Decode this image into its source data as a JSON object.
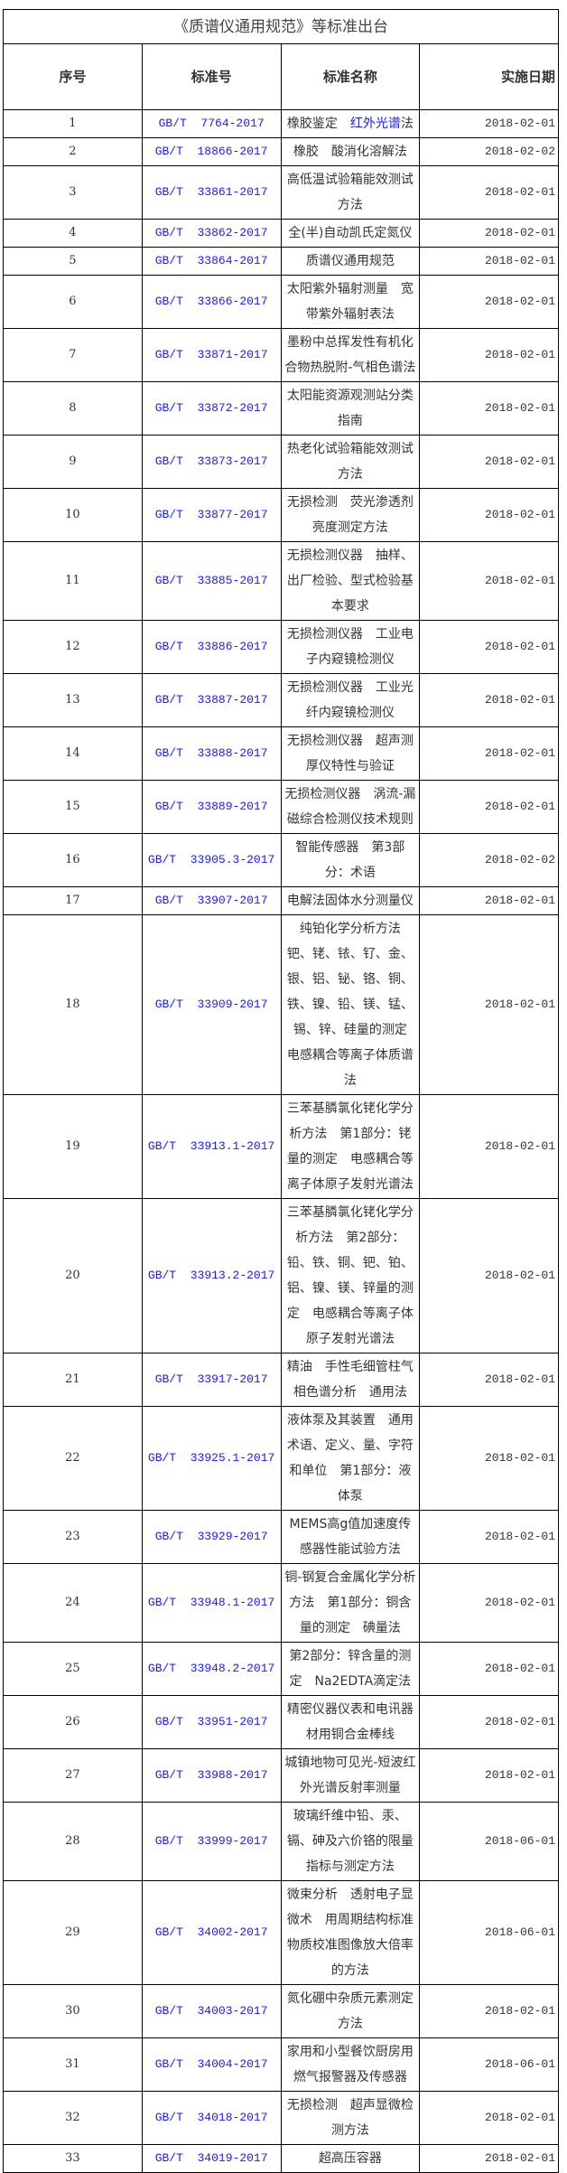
{
  "title": "《质谱仪通用规范》等标准出台",
  "headers": {
    "no": "序号",
    "code": "标准号",
    "name": "标准名称",
    "date": "实施日期"
  },
  "colors": {
    "code": "#1a1aff",
    "border": "#000000"
  },
  "rows": [
    {
      "no": "1",
      "code": "GB/T  7764-2017",
      "name": "橡胶鉴定　",
      "name_link": "红外光谱",
      "name_tail": "法",
      "date": "2018-02-01"
    },
    {
      "no": "2",
      "code": "GB/T  18866-2017",
      "name": "橡胶　酸消化溶解法",
      "date": "2018-02-02"
    },
    {
      "no": "3",
      "code": "GB/T  33861-2017",
      "name": "高低温试验箱能效测试方法",
      "date": "2018-02-01"
    },
    {
      "no": "4",
      "code": "GB/T  33862-2017",
      "name": "全(半)自动凯氏定氮仪",
      "date": "2018-02-01"
    },
    {
      "no": "5",
      "code": "GB/T  33864-2017",
      "name": "质谱仪通用规范",
      "date": "2018-02-01"
    },
    {
      "no": "6",
      "code": "GB/T  33866-2017",
      "name": "太阳紫外辐射测量　宽带紫外辐射表法",
      "date": "2018-02-01"
    },
    {
      "no": "7",
      "code": "GB/T  33871-2017",
      "name": "墨粉中总挥发性有机化合物热脱附-气相色谱法",
      "date": "2018-02-01"
    },
    {
      "no": "8",
      "code": "GB/T  33872-2017",
      "name": "太阳能资源观测站分类指南",
      "date": "2018-02-01"
    },
    {
      "no": "9",
      "code": "GB/T  33873-2017",
      "name": "热老化试验箱能效测试方法",
      "date": "2018-02-01"
    },
    {
      "no": "10",
      "code": "GB/T  33877-2017",
      "name": "无损检测　荧光渗透剂亮度测定方法",
      "date": "2018-02-01"
    },
    {
      "no": "11",
      "code": "GB/T  33885-2017",
      "name": "无损检测仪器　抽样、出厂检验、型式检验基本要求",
      "date": "2018-02-01"
    },
    {
      "no": "12",
      "code": "GB/T  33886-2017",
      "name": "无损检测仪器　工业电子内窥镜检测仪",
      "date": "2018-02-01"
    },
    {
      "no": "13",
      "code": "GB/T  33887-2017",
      "name": "无损检测仪器　工业光纤内窥镜检测仪",
      "date": "2018-02-01"
    },
    {
      "no": "14",
      "code": "GB/T  33888-2017",
      "name": "无损检测仪器　超声测厚仪特性与验证",
      "date": "2018-02-01"
    },
    {
      "no": "15",
      "code": "GB/T  33889-2017",
      "name": "无损检测仪器　涡流-漏磁综合检测仪技术规则",
      "date": "2018-02-01"
    },
    {
      "no": "16",
      "code": "GB/T  33905.3-2017",
      "name": "智能传感器　第3部分：术语",
      "date": "2018-02-02"
    },
    {
      "no": "17",
      "code": "GB/T  33907-2017",
      "name": "电解法固体水分测量仪",
      "date": "2018-02-01"
    },
    {
      "no": "18",
      "code": "GB/T  33909-2017",
      "name": "纯铂化学分析方法　钯、铑、铱、钌、金、银、铝、铋、铬、铜、铁、镍、铅、镁、锰、锡、锌、硅量的测定　电感耦合等离子体质谱法",
      "date": "2018-02-01"
    },
    {
      "no": "19",
      "code": "GB/T  33913.1-2017",
      "name": "三苯基膦氯化铑化学分析方法　第1部分：铑量的测定　电感耦合等离子体原子发射光谱法",
      "date": "2018-02-01"
    },
    {
      "no": "20",
      "code": "GB/T  33913.2-2017",
      "name": "三苯基膦氯化铑化学分析方法　第2部分：铅、铁、铜、钯、铂、铝、镍、镁、锌量的测定　电感耦合等离子体原子发射光谱法",
      "date": "2018-02-01"
    },
    {
      "no": "21",
      "code": "GB/T  33917-2017",
      "name": "精油　手性毛细管柱气相色谱分析　通用法",
      "date": "2018-02-01"
    },
    {
      "no": "22",
      "code": "GB/T  33925.1-2017",
      "name": "液体泵及其装置　通用术语、定义、量、字符和单位　第1部分：液体泵",
      "date": "2018-02-01"
    },
    {
      "no": "23",
      "code": "GB/T  33929-2017",
      "name": "MEMS高g值加速度传感器性能试验方法",
      "date": "2018-02-01"
    },
    {
      "no": "24",
      "code": "GB/T  33948.1-2017",
      "name": "铜-钢复合金属化学分析方法　第1部分：铜含量的测定　碘量法",
      "date": "2018-02-01"
    },
    {
      "no": "25",
      "code": "GB/T  33948.2-2017",
      "name": "第2部分：锌含量的测定　Na2EDTA滴定法",
      "date": "2018-02-01"
    },
    {
      "no": "26",
      "code": "GB/T  33951-2017",
      "name": "精密仪器仪表和电讯器材用铜合金棒线",
      "date": "2018-02-01"
    },
    {
      "no": "27",
      "code": "GB/T  33988-2017",
      "name": "城镇地物可见光-短波红外光谱反射率测量",
      "date": "2018-02-01"
    },
    {
      "no": "28",
      "code": "GB/T  33999-2017",
      "name": "玻璃纤维中铅、汞、镉、砷及六价铬的限量指标与测定方法",
      "date": "2018-06-01"
    },
    {
      "no": "29",
      "code": "GB/T  34002-2017",
      "name": "微束分析　透射电子显微术　用周期结构标准物质校准图像放大倍率的方法",
      "date": "2018-06-01"
    },
    {
      "no": "30",
      "code": "GB/T  34003-2017",
      "name": "氮化硼中杂质元素测定方法",
      "date": "2018-02-01"
    },
    {
      "no": "31",
      "code": "GB/T  34004-2017",
      "name": "家用和小型餐饮厨房用燃气报警器及传感器",
      "date": "2018-06-01"
    },
    {
      "no": "32",
      "code": "GB/T  34018-2017",
      "name": "无损检测　超声显微检测方法",
      "date": "2018-02-01"
    },
    {
      "no": "33",
      "code": "GB/T  34019-2017",
      "name": "超高压容器",
      "date": "2018-02-01"
    }
  ]
}
